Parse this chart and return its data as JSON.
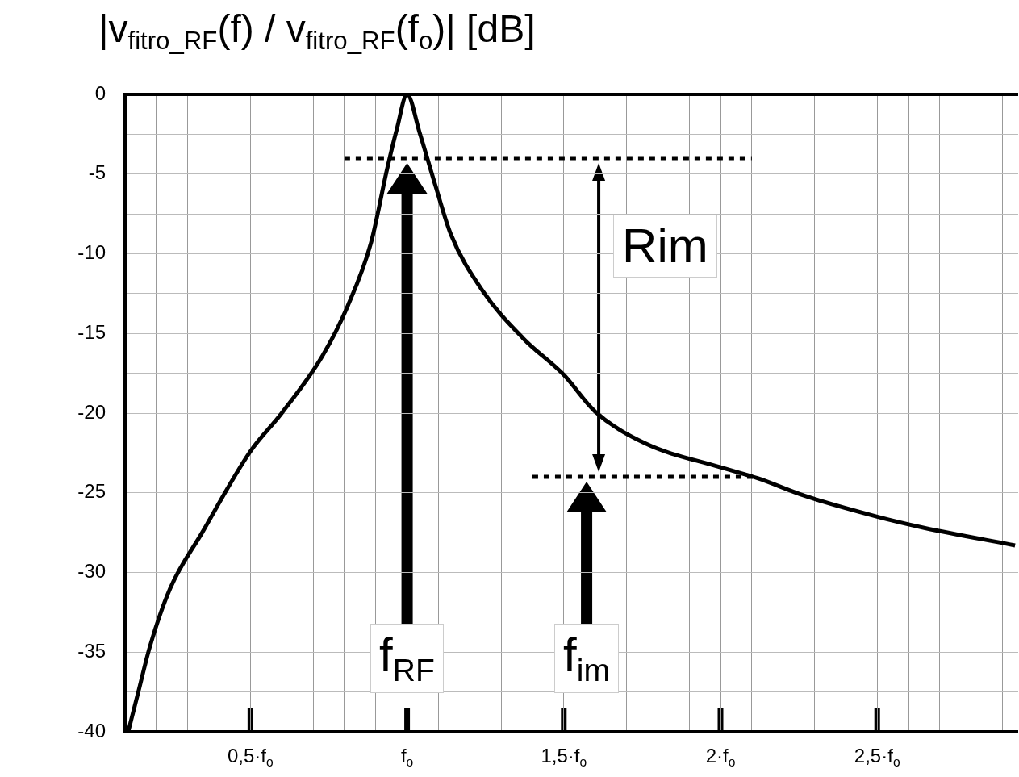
{
  "chart_data": {
    "type": "line",
    "ylabel": "|v$_{fitro_RF}$(f) / v$_{fitro_RF}$(f$_{o}$)|   [dB]",
    "xlim": [
      0.1,
      2.95
    ],
    "ylim": [
      -40,
      0
    ],
    "xticks": [
      {
        "value": 0.1,
        "label": null
      },
      {
        "value": 0.2,
        "label": null
      },
      {
        "value": 0.3,
        "label": null
      },
      {
        "value": 0.4,
        "label": null
      },
      {
        "value": 0.5,
        "label": "0,5·f$_{o}$"
      },
      {
        "value": 0.6,
        "label": null
      },
      {
        "value": 0.7,
        "label": null
      },
      {
        "value": 0.8,
        "label": null
      },
      {
        "value": 0.9,
        "label": null
      },
      {
        "value": 1,
        "label": "f$_{o}$"
      },
      {
        "value": 1.1,
        "label": null
      },
      {
        "value": 1.2,
        "label": null
      },
      {
        "value": 1.3,
        "label": null
      },
      {
        "value": 1.4,
        "label": null
      },
      {
        "value": 1.5,
        "label": "1,5·f$_{o}$"
      },
      {
        "value": 1.6,
        "label": null
      },
      {
        "value": 1.7,
        "label": null
      },
      {
        "value": 1.8,
        "label": null
      },
      {
        "value": 1.9,
        "label": null
      },
      {
        "value": 2,
        "label": "2·f$_{o}$"
      },
      {
        "value": 2.1,
        "label": null
      },
      {
        "value": 2.2,
        "label": null
      },
      {
        "value": 2.3,
        "label": null
      },
      {
        "value": 2.4,
        "label": null
      },
      {
        "value": 2.5,
        "label": "2,5·f$_{o}$"
      },
      {
        "value": 2.6,
        "label": null
      },
      {
        "value": 2.7,
        "label": null
      },
      {
        "value": 2.8,
        "label": null
      },
      {
        "value": 2.9,
        "label": null
      }
    ],
    "yticks": [
      0,
      {
        "value": -2.5,
        "label": null
      },
      -5,
      {
        "value": -7.5,
        "label": null
      },
      -10,
      {
        "value": -12.5,
        "label": null
      },
      -15,
      {
        "value": -17.5,
        "label": null
      },
      -20,
      {
        "value": -22.5,
        "label": null
      },
      -25,
      {
        "value": -27.5,
        "label": null
      },
      -30,
      {
        "value": -32.5,
        "label": null
      },
      -35,
      {
        "value": -37.5,
        "label": null
      },
      -40
    ],
    "grid": true,
    "legend": false,
    "marker": "none",
    "series": [
      {
        "color": "#000000",
        "line_style": "solid",
        "x": [
          0.11,
          0.141,
          0.18,
          0.244,
          0.346,
          0.5,
          0.6,
          0.73,
          0.81,
          0.885,
          0.936,
          0.967,
          1.0,
          1.04,
          1.09,
          1.14,
          1.24,
          1.37,
          1.5,
          1.6,
          1.76,
          2.0,
          2.12,
          2.27,
          2.5,
          2.65,
          2.94
        ],
        "values": [
          -40,
          -37.6,
          -34.6,
          -31,
          -27.5,
          -22.4,
          -20,
          -16.4,
          -13.3,
          -9.3,
          -4.7,
          -2.2,
          0,
          -2.4,
          -5.7,
          -8.8,
          -12.3,
          -15.3,
          -17.6,
          -19.9,
          -21.9,
          -23.4,
          -24.1,
          -25.2,
          -26.5,
          -27.2,
          -28.3
        ]
      },
      {
        "color": "#000000",
        "line_style": "dotted",
        "x": [
          0.8,
          2.1
        ],
        "values": [
          -4,
          -4
        ]
      },
      {
        "color": "#000000",
        "line_style": "dotted",
        "x": [
          1.4,
          2.12
        ],
        "values": [
          -24,
          -24
        ]
      }
    ],
    "annotations": [
      "f$_{RF}$",
      "f$_{im}$",
      "Rim"
    ]
  }
}
